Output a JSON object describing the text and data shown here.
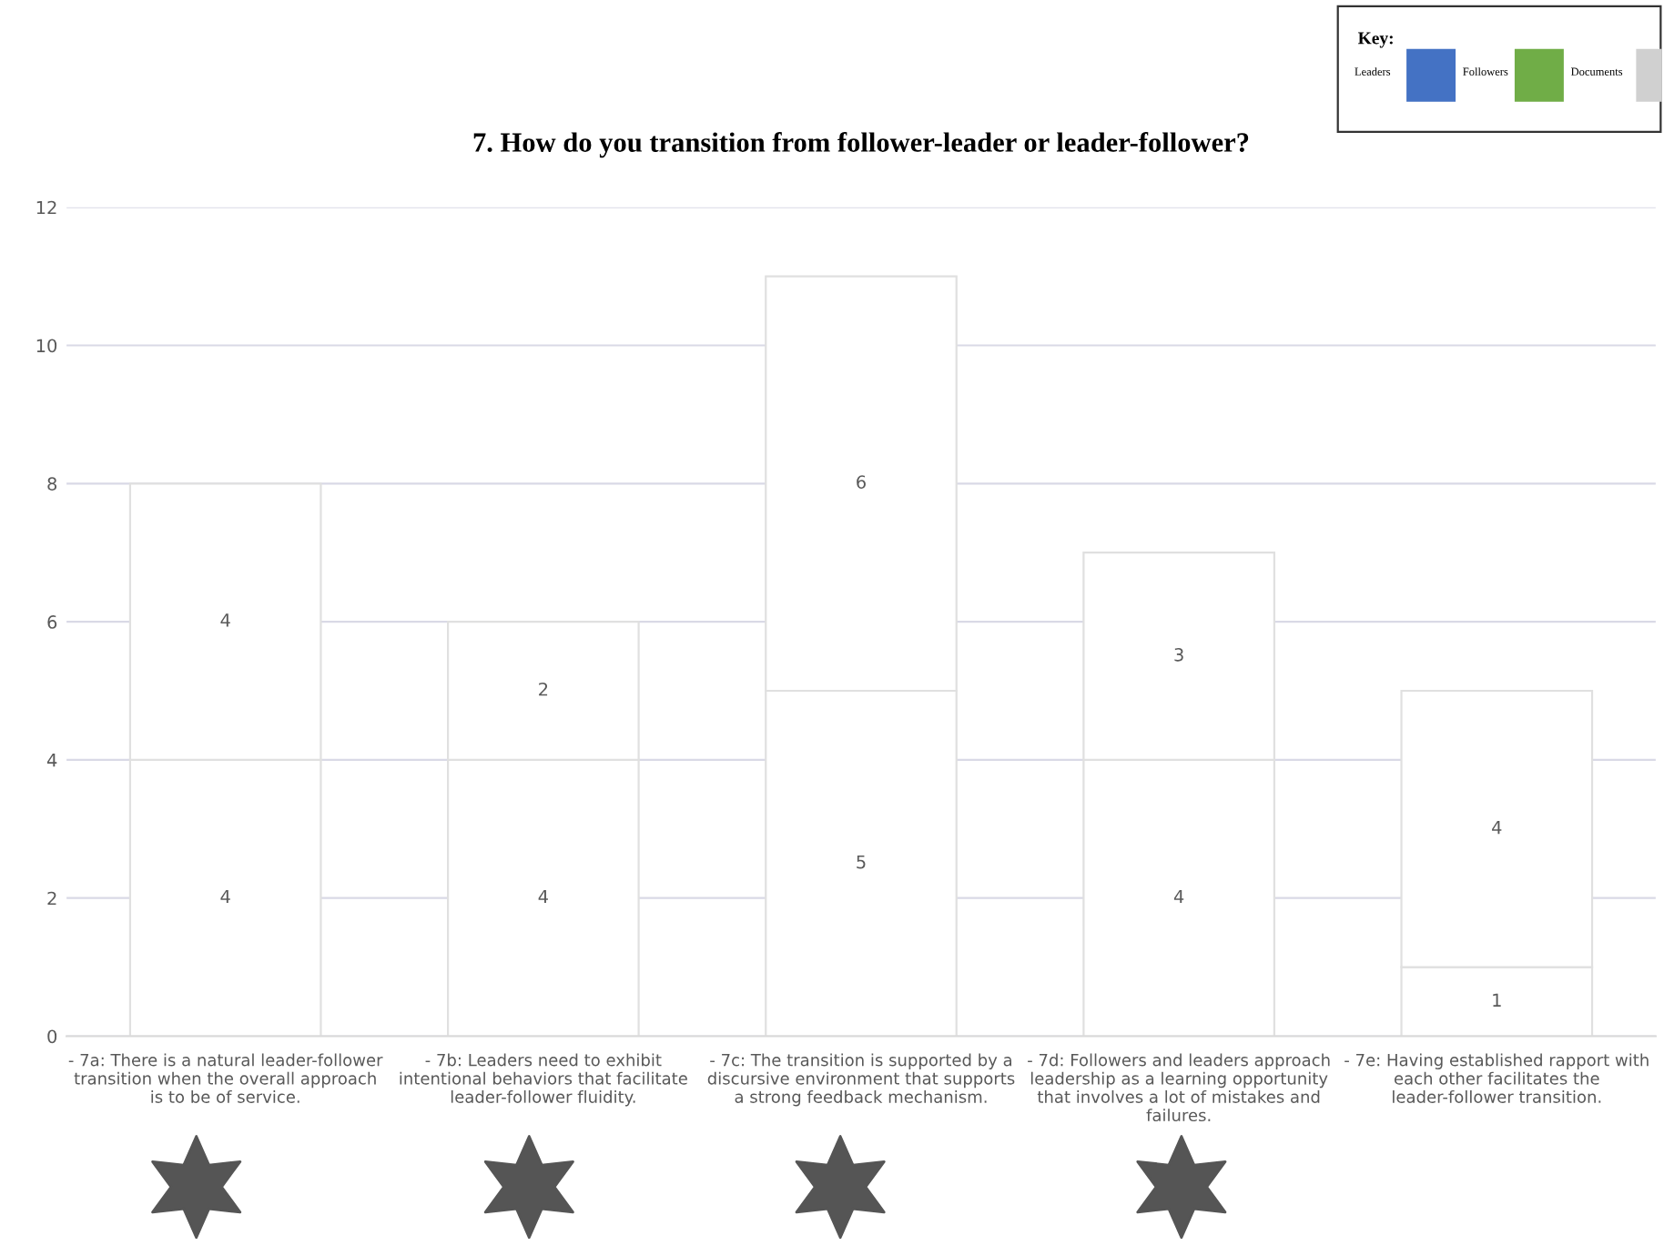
{
  "chart_data": {
    "type": "bar",
    "stacked": true,
    "title": "7. How do you transition from follower-leader or leader-follower?",
    "categories": [
      "- 7a: There is a natural leader-follower transition when the overall approach is to be of service.",
      "- 7b: Leaders need to exhibit intentional behaviors that facilitate leader-follower fluidity.",
      "- 7c: The transition is supported by a discursive environment that supports a strong feedback mechanism.",
      "- 7d: Followers and leaders approach leadership as a learning opportunity that involves a lot of mistakes and failures.",
      "- 7e: Having established rapport with each other facilitates the leader-follower transition."
    ],
    "series": [
      {
        "color": "#ffffff",
        "values": [
          4,
          4,
          5,
          4,
          1
        ]
      },
      {
        "color": "#ffffff",
        "values": [
          4,
          2,
          6,
          3,
          4
        ]
      }
    ],
    "data_labels": true,
    "ylim": [
      0,
      12
    ],
    "yticks": [
      0,
      2,
      4,
      6,
      8,
      10,
      12
    ],
    "grid": "y",
    "legend": false,
    "annotations": [
      "Key:",
      "Leaders",
      "Followers",
      "Documents"
    ]
  }
}
